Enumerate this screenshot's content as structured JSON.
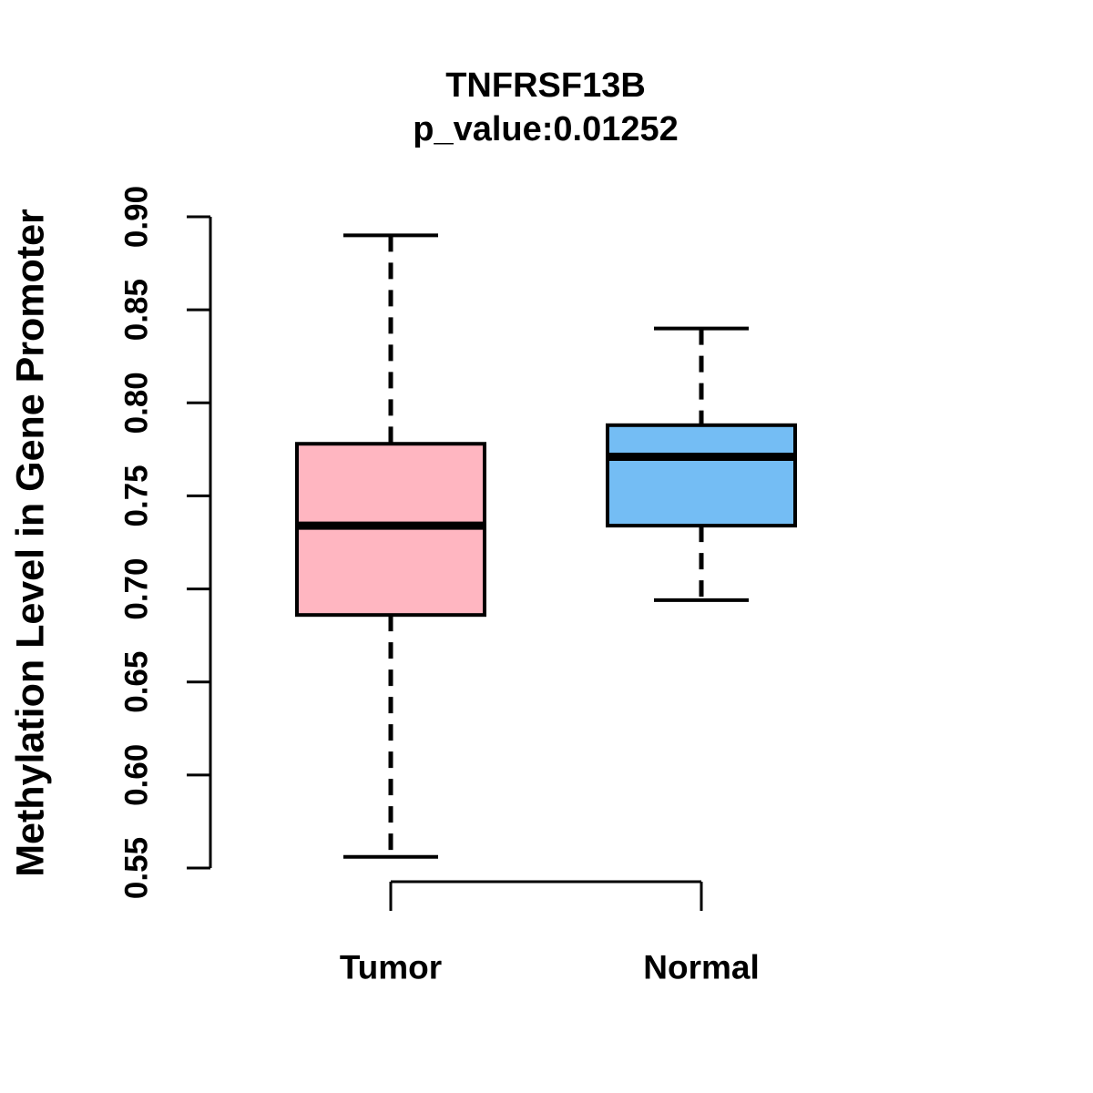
{
  "header": {
    "title": "TNFRSF13B",
    "subtitle": "p_value:0.01252"
  },
  "chart_data": {
    "type": "boxplot",
    "title": "TNFRSF13B",
    "subtitle": "p_value:0.01252",
    "xlabel": "",
    "ylabel": "Methylation Level in Gene Promoter",
    "ylim": [
      0.55,
      0.9
    ],
    "ytick_labels": [
      "0.55",
      "0.60",
      "0.65",
      "0.70",
      "0.75",
      "0.80",
      "0.85",
      "0.90"
    ],
    "categories": [
      "Tumor",
      "Normal"
    ],
    "series": [
      {
        "name": "Tumor",
        "lower_whisker": 0.556,
        "q1": 0.686,
        "median": 0.734,
        "q3": 0.778,
        "upper_whisker": 0.89,
        "fill_color": "#FFB6C1"
      },
      {
        "name": "Normal",
        "lower_whisker": 0.694,
        "q1": 0.734,
        "median": 0.771,
        "q3": 0.788,
        "upper_whisker": 0.84,
        "fill_color": "#74BDF4"
      }
    ],
    "whisker_style": "dashed",
    "line_color": "#000000",
    "background_color": "#FFFFFF",
    "legend": "none",
    "grid": "off"
  }
}
